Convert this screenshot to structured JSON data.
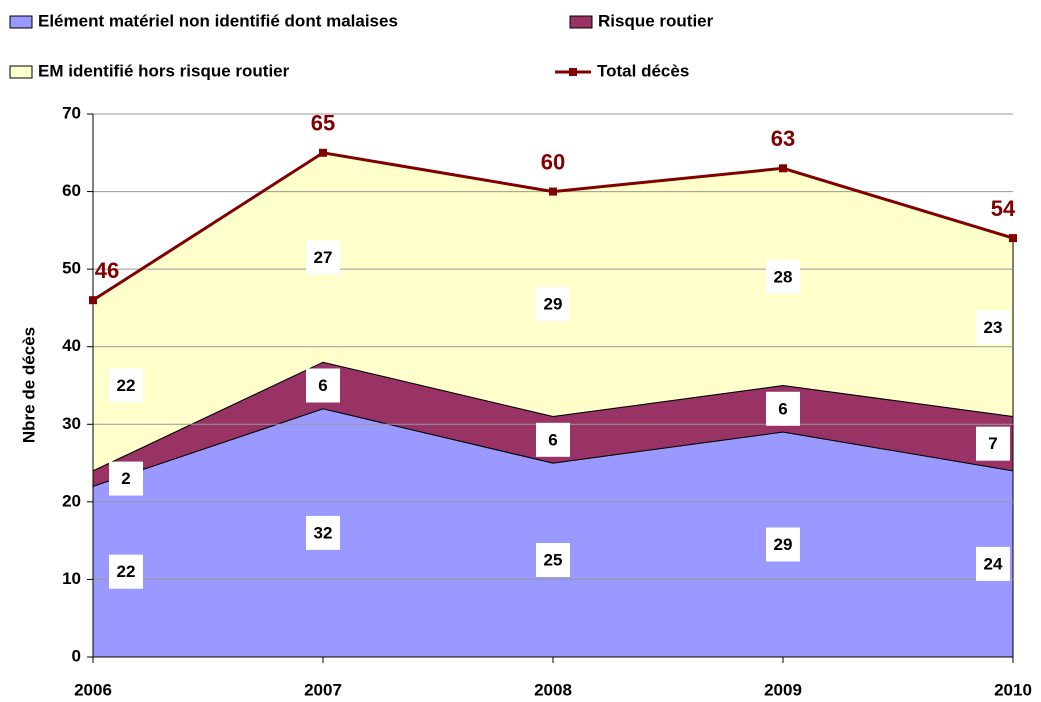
{
  "chart_data": {
    "type": "stacked-area",
    "y_label": "Nbre de décès",
    "categories": [
      "2006",
      "2007",
      "2008",
      "2009",
      "2010"
    ],
    "series": [
      {
        "name": "Elément matériel non identifié dont malaises",
        "color": "#9999ff",
        "values": [
          22,
          32,
          25,
          29,
          24
        ]
      },
      {
        "name": "Risque routier",
        "color": "#993366",
        "values": [
          2,
          6,
          6,
          6,
          7
        ]
      },
      {
        "name": "EM identifié hors risque routier",
        "color": "#ffffcc",
        "values": [
          22,
          27,
          29,
          28,
          23
        ]
      }
    ],
    "total": {
      "name": "Total décès",
      "color": "#800000",
      "values": [
        46,
        65,
        60,
        63,
        54
      ]
    },
    "ylim": [
      0,
      70
    ],
    "yticks": [
      0,
      10,
      20,
      30,
      40,
      50,
      60,
      70
    ],
    "grid": true
  }
}
